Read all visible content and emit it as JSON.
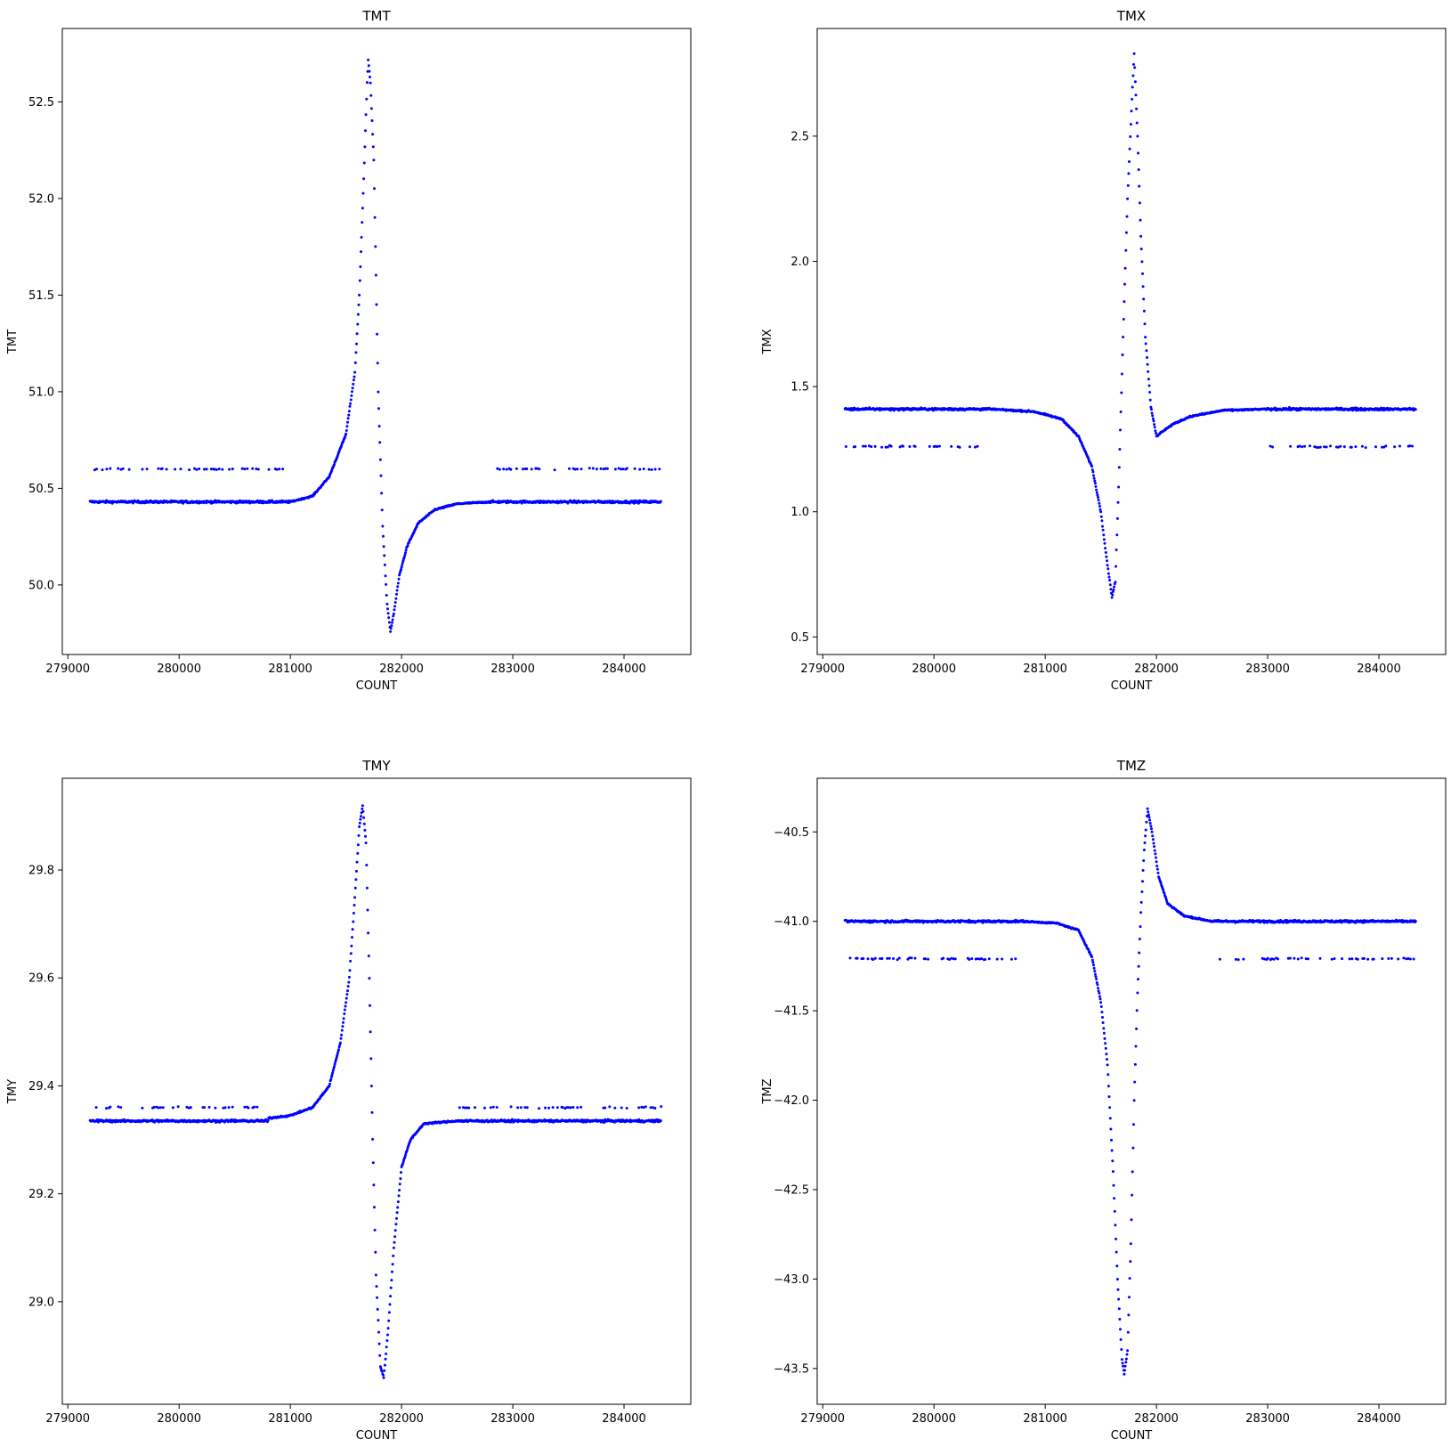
{
  "figure": {
    "panels": [
      "TMT",
      "TMX",
      "TMY",
      "TMZ"
    ]
  },
  "chart_data": [
    {
      "type": "scatter",
      "title": "TMT",
      "xlabel": "COUNT",
      "ylabel": "TMT",
      "xlim": [
        278950,
        284600
      ],
      "ylim": [
        49.64,
        52.88
      ],
      "xticks": [
        279000,
        280000,
        281000,
        282000,
        283000,
        284000
      ],
      "yticks": [
        50.0,
        50.5,
        51.0,
        51.5,
        52.0,
        52.5
      ],
      "ytick_labels": [
        "50.0",
        "50.5",
        "51.0",
        "51.5",
        "52.0",
        "52.5"
      ],
      "x_range": [
        279200,
        284330
      ],
      "baseline": 50.43,
      "spike_points": [
        [
          281000,
          50.43
        ],
        [
          281200,
          50.46
        ],
        [
          281350,
          50.56
        ],
        [
          281500,
          50.78
        ],
        [
          281580,
          51.1
        ],
        [
          281620,
          51.5
        ],
        [
          281660,
          52.1
        ],
        [
          281690,
          52.6
        ],
        [
          281700,
          52.72
        ],
        [
          281720,
          52.6
        ],
        [
          281750,
          52.2
        ],
        [
          281770,
          51.6
        ],
        [
          281790,
          51.0
        ],
        [
          281830,
          50.3
        ],
        [
          281870,
          49.9
        ],
        [
          281900,
          49.76
        ],
        [
          281930,
          49.85
        ],
        [
          281980,
          50.05
        ],
        [
          282050,
          50.2
        ],
        [
          282150,
          50.32
        ],
        [
          282300,
          50.39
        ],
        [
          282500,
          50.42
        ],
        [
          282800,
          50.43
        ]
      ],
      "outlier_level": 50.6,
      "color": "#0000ff",
      "grid": false,
      "marker_size": 1.5
    },
    {
      "type": "scatter",
      "title": "TMX",
      "xlabel": "COUNT",
      "ylabel": "TMX",
      "xlim": [
        278950,
        284600
      ],
      "ylim": [
        0.43,
        2.93
      ],
      "xticks": [
        279000,
        280000,
        281000,
        282000,
        283000,
        284000
      ],
      "yticks": [
        0.5,
        1.0,
        1.5,
        2.0,
        2.5
      ],
      "ytick_labels": [
        "0.5",
        "1.0",
        "1.5",
        "2.0",
        "2.5"
      ],
      "x_range": [
        279200,
        284330
      ],
      "baseline": 1.41,
      "spike_points": [
        [
          280500,
          1.41
        ],
        [
          280900,
          1.4
        ],
        [
          281150,
          1.37
        ],
        [
          281300,
          1.3
        ],
        [
          281420,
          1.18
        ],
        [
          281500,
          1.0
        ],
        [
          281550,
          0.82
        ],
        [
          281600,
          0.66
        ],
        [
          281630,
          0.72
        ],
        [
          281660,
          1.1
        ],
        [
          281700,
          1.7
        ],
        [
          281740,
          2.25
        ],
        [
          281780,
          2.65
        ],
        [
          281800,
          2.83
        ],
        [
          281830,
          2.5
        ],
        [
          281860,
          2.1
        ],
        [
          281900,
          1.7
        ],
        [
          281950,
          1.42
        ],
        [
          282000,
          1.3
        ],
        [
          282050,
          1.32
        ],
        [
          282150,
          1.35
        ],
        [
          282300,
          1.38
        ],
        [
          282600,
          1.405
        ],
        [
          283000,
          1.41
        ]
      ],
      "outlier_level": 1.26,
      "color": "#0000ff",
      "grid": false,
      "marker_size": 1.5
    },
    {
      "type": "scatter",
      "title": "TMY",
      "xlabel": "COUNT",
      "ylabel": "TMY",
      "xlim": [
        278950,
        284600
      ],
      "ylim": [
        28.81,
        29.97
      ],
      "xticks": [
        279000,
        280000,
        281000,
        282000,
        283000,
        284000
      ],
      "yticks": [
        29.0,
        29.2,
        29.4,
        29.6,
        29.8
      ],
      "ytick_labels": [
        "29.0",
        "29.2",
        "29.4",
        "29.6",
        "29.8"
      ],
      "x_range": [
        279200,
        284330
      ],
      "baseline": 29.335,
      "spike_points": [
        [
          280800,
          29.34
        ],
        [
          281000,
          29.345
        ],
        [
          281200,
          29.36
        ],
        [
          281350,
          29.4
        ],
        [
          281450,
          29.48
        ],
        [
          281530,
          29.6
        ],
        [
          281580,
          29.75
        ],
        [
          281620,
          29.88
        ],
        [
          281650,
          29.92
        ],
        [
          281680,
          29.85
        ],
        [
          281710,
          29.6
        ],
        [
          281740,
          29.3
        ],
        [
          281770,
          29.05
        ],
        [
          281810,
          28.88
        ],
        [
          281840,
          28.86
        ],
        [
          281880,
          28.95
        ],
        [
          281930,
          29.1
        ],
        [
          282000,
          29.25
        ],
        [
          282080,
          29.3
        ],
        [
          282200,
          29.33
        ],
        [
          282500,
          29.335
        ]
      ],
      "outlier_level": 29.36,
      "color": "#0000ff",
      "grid": false,
      "marker_size": 1.5
    },
    {
      "type": "scatter",
      "title": "TMZ",
      "xlabel": "COUNT",
      "ylabel": "TMZ",
      "xlim": [
        278950,
        284600
      ],
      "ylim": [
        -43.7,
        -40.2
      ],
      "xticks": [
        279000,
        280000,
        281000,
        282000,
        283000,
        284000
      ],
      "yticks": [
        -43.5,
        -43.0,
        -42.5,
        -42.0,
        -41.5,
        -41.0,
        -40.5
      ],
      "ytick_labels": [
        "−43.5",
        "−43.0",
        "−42.5",
        "−42.0",
        "−41.5",
        "−41.0",
        "−40.5"
      ],
      "x_range": [
        279200,
        284330
      ],
      "baseline": -41.0,
      "spike_points": [
        [
          280800,
          -41.0
        ],
        [
          281100,
          -41.01
        ],
        [
          281300,
          -41.05
        ],
        [
          281420,
          -41.2
        ],
        [
          281500,
          -41.45
        ],
        [
          281560,
          -41.8
        ],
        [
          281610,
          -42.4
        ],
        [
          281650,
          -43.0
        ],
        [
          281690,
          -43.45
        ],
        [
          281710,
          -43.53
        ],
        [
          281740,
          -43.4
        ],
        [
          281770,
          -42.8
        ],
        [
          281800,
          -42.0
        ],
        [
          281830,
          -41.4
        ],
        [
          281860,
          -40.95
        ],
        [
          281890,
          -40.6
        ],
        [
          281920,
          -40.37
        ],
        [
          281960,
          -40.5
        ],
        [
          282020,
          -40.75
        ],
        [
          282100,
          -40.9
        ],
        [
          282250,
          -40.97
        ],
        [
          282500,
          -41.0
        ]
      ],
      "outlier_level": -41.21,
      "color": "#0000ff",
      "grid": false,
      "marker_size": 1.5
    }
  ]
}
